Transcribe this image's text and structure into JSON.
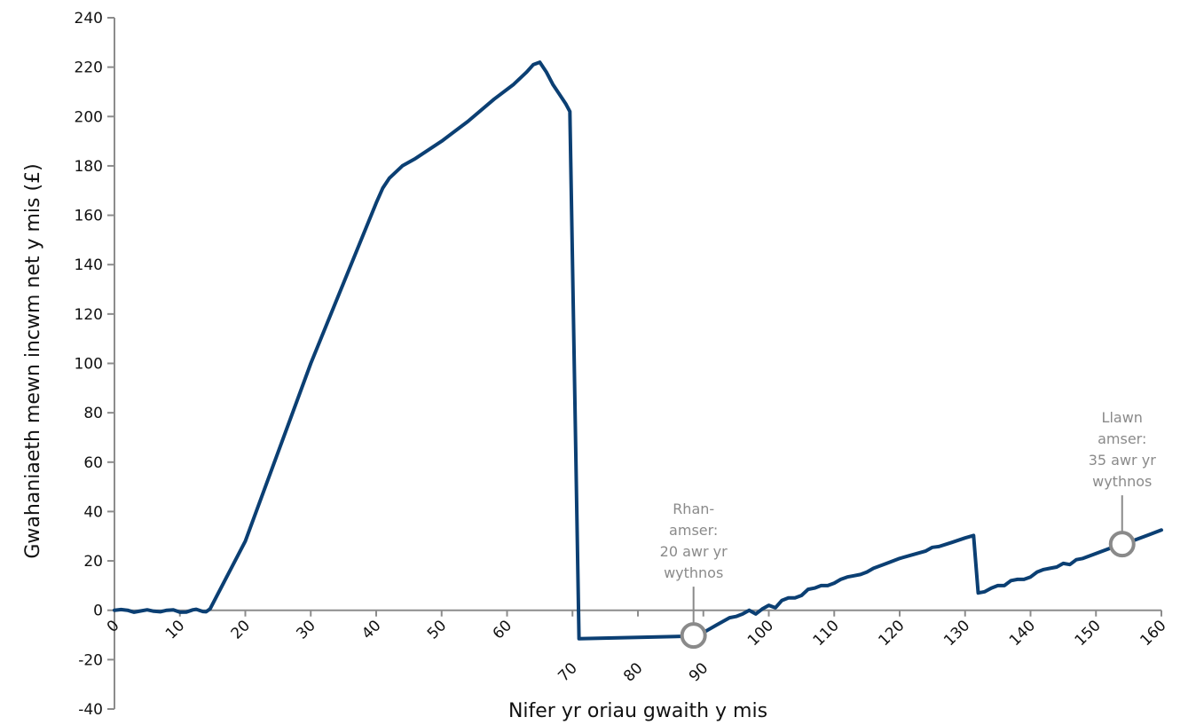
{
  "colors": {
    "series": "#0b3f73",
    "axis": "#8c8c8c",
    "annotation": "#8a8a8a",
    "marker_fill": "#ffffff"
  },
  "chart_data": {
    "type": "line",
    "xlabel": "Nifer yr oriau gwaith y mis",
    "ylabel": "Gwahaniaeth mewn incwm net y mis (£)",
    "xlim": [
      0,
      160
    ],
    "ylim": [
      -40,
      240
    ],
    "x_ticks": [
      0,
      10,
      20,
      30,
      40,
      50,
      60,
      70,
      80,
      90,
      100,
      110,
      120,
      130,
      140,
      150,
      160
    ],
    "y_ticks": [
      -40,
      -20,
      0,
      20,
      40,
      60,
      80,
      100,
      120,
      140,
      160,
      180,
      200,
      220,
      240
    ],
    "grid": false,
    "series": [
      {
        "points": [
          [
            0,
            0
          ],
          [
            1,
            0.3
          ],
          [
            2,
            0
          ],
          [
            3,
            -0.8
          ],
          [
            4,
            -0.3
          ],
          [
            5,
            0.2
          ],
          [
            6,
            -0.4
          ],
          [
            7,
            -0.6
          ],
          [
            8,
            0
          ],
          [
            9,
            0.2
          ],
          [
            10,
            -0.8
          ],
          [
            11,
            -0.7
          ],
          [
            12,
            0.2
          ],
          [
            12.5,
            0.4
          ],
          [
            13.5,
            -0.5
          ],
          [
            14,
            -0.6
          ],
          [
            14.6,
            0.5
          ],
          [
            20,
            28
          ],
          [
            30,
            100
          ],
          [
            40,
            165
          ],
          [
            41,
            171
          ],
          [
            42,
            175
          ],
          [
            44,
            180
          ],
          [
            46,
            183
          ],
          [
            50,
            190
          ],
          [
            54,
            198
          ],
          [
            58,
            207
          ],
          [
            61,
            213
          ],
          [
            63,
            218
          ],
          [
            64,
            221
          ],
          [
            65,
            222
          ],
          [
            66,
            218
          ],
          [
            67,
            213
          ],
          [
            68,
            209
          ],
          [
            69,
            205
          ],
          [
            69.6,
            202
          ],
          [
            71,
            -11.5
          ],
          [
            80,
            -11
          ],
          [
            88,
            -10.5
          ],
          [
            90,
            -9
          ],
          [
            92,
            -6
          ],
          [
            94,
            -3
          ],
          [
            95,
            -2.5
          ],
          [
            96,
            -1.5
          ],
          [
            97,
            0
          ],
          [
            98,
            -1.5
          ],
          [
            99,
            0.5
          ],
          [
            100,
            2
          ],
          [
            101,
            1
          ],
          [
            102,
            4
          ],
          [
            103,
            5
          ],
          [
            104,
            5
          ],
          [
            105,
            6
          ],
          [
            106,
            8.5
          ],
          [
            107,
            9
          ],
          [
            108,
            10
          ],
          [
            109,
            10
          ],
          [
            110,
            11
          ],
          [
            111,
            12.5
          ],
          [
            112,
            13.5
          ],
          [
            113,
            14
          ],
          [
            114,
            14.5
          ],
          [
            115,
            15.5
          ],
          [
            116,
            17
          ],
          [
            118,
            19
          ],
          [
            120,
            21
          ],
          [
            122,
            22.5
          ],
          [
            124,
            24
          ],
          [
            125,
            25.5
          ],
          [
            126,
            25.8
          ],
          [
            128,
            27.5
          ],
          [
            130,
            29.3
          ],
          [
            131.3,
            30.3
          ],
          [
            132,
            7
          ],
          [
            133,
            7.5
          ],
          [
            134,
            9
          ],
          [
            135,
            10
          ],
          [
            136,
            10
          ],
          [
            137,
            12
          ],
          [
            138,
            12.5
          ],
          [
            139,
            12.5
          ],
          [
            140,
            13.5
          ],
          [
            141,
            15.5
          ],
          [
            142,
            16.5
          ],
          [
            143,
            17
          ],
          [
            144,
            17.5
          ],
          [
            145,
            19
          ],
          [
            146,
            18.5
          ],
          [
            147,
            20.5
          ],
          [
            148,
            21
          ],
          [
            150,
            23
          ],
          [
            152,
            25
          ],
          [
            154,
            27
          ],
          [
            156,
            28.5
          ],
          [
            158,
            30.5
          ],
          [
            160,
            32.5
          ]
        ]
      }
    ],
    "annotations": [
      {
        "x": 88.5,
        "y": -10.2,
        "lines": [
          "Rhan-",
          "amser:",
          "20 awr yr",
          "wythnos"
        ]
      },
      {
        "x": 154,
        "y": 26.8,
        "lines": [
          "Llawn",
          "amser:",
          "35 awr yr",
          "wythnos"
        ]
      }
    ]
  }
}
